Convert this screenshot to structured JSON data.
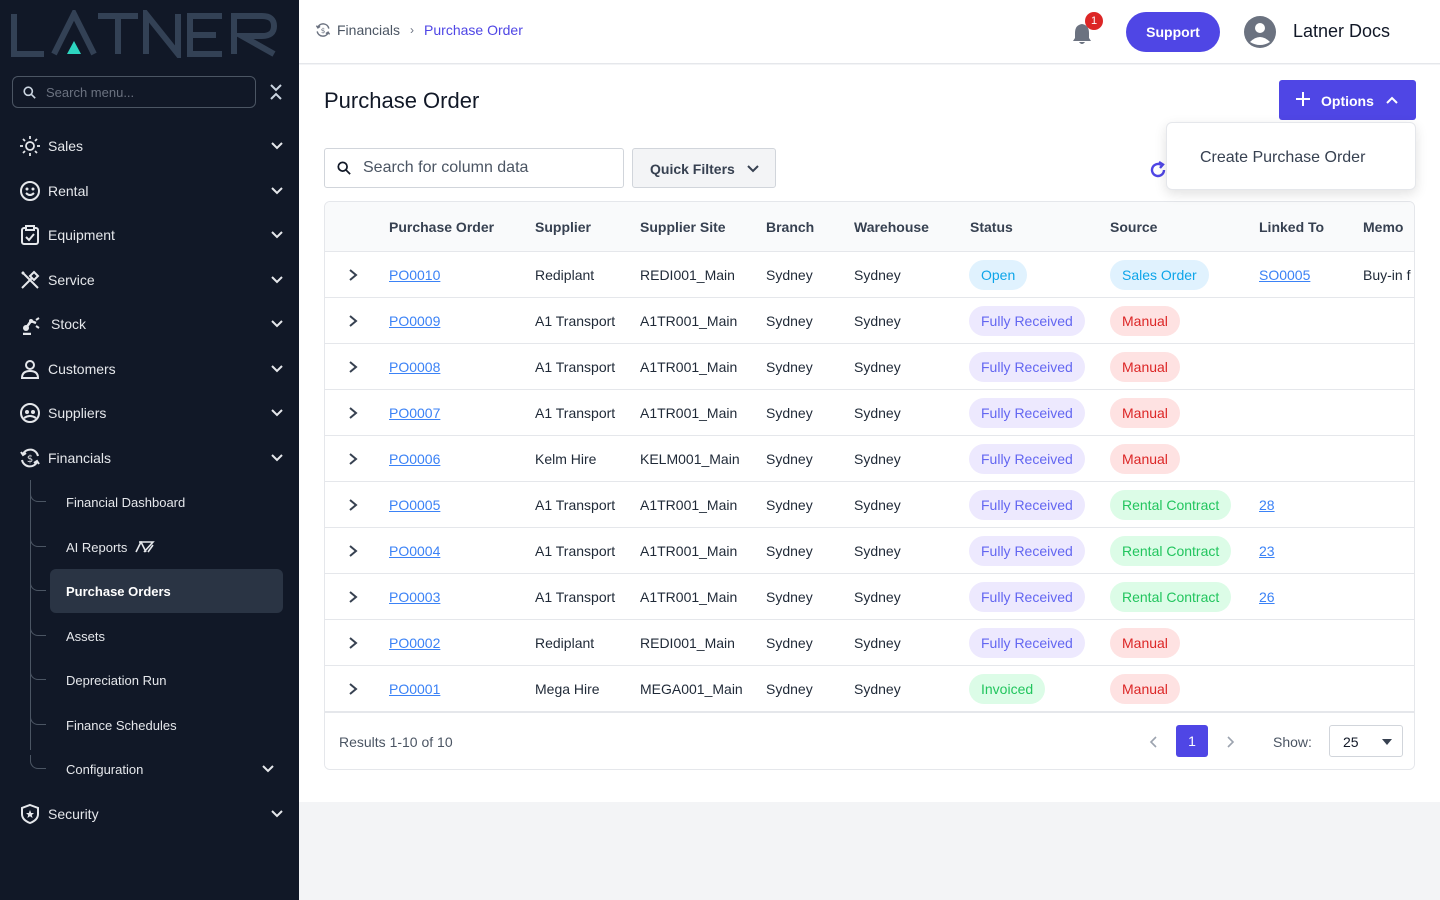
{
  "colors": {
    "sidebar_bg": "#111827",
    "accent": "#4f46e5",
    "link": "#3b82f6",
    "logo_teal": "#5eead4"
  },
  "sidebar": {
    "logo_text": "LATNER",
    "search_placeholder": "Search menu...",
    "items": [
      {
        "label": "Sales",
        "icon": "sun-icon"
      },
      {
        "label": "Rental",
        "icon": "face-icon"
      },
      {
        "label": "Equipment",
        "icon": "clipboard-icon"
      },
      {
        "label": "Service",
        "icon": "tools-icon"
      },
      {
        "label": "Stock",
        "icon": "robot-arm-icon"
      },
      {
        "label": "Customers",
        "icon": "user-icon"
      },
      {
        "label": "Suppliers",
        "icon": "people-icon"
      },
      {
        "label": "Financials",
        "icon": "dollar-cycle-icon"
      }
    ],
    "financials_sub": [
      {
        "label": "Financial Dashboard"
      },
      {
        "label": "AI Reports"
      },
      {
        "label": "Purchase Orders"
      },
      {
        "label": "Assets"
      },
      {
        "label": "Depreciation Run"
      },
      {
        "label": "Finance Schedules"
      },
      {
        "label": "Configuration"
      }
    ],
    "security_label": "Security"
  },
  "topbar": {
    "breadcrumb_parent": "Financials",
    "breadcrumb_current": "Purchase Order",
    "notification_count": "1",
    "support_label": "Support",
    "user_name": "Latner Docs"
  },
  "main": {
    "title": "Purchase Order",
    "options_label": "Options",
    "dropdown_item": "Create Purchase Order",
    "search_placeholder": "Search for column data",
    "quick_filters_label": "Quick Filters",
    "columns": [
      "Purchase Order",
      "Supplier",
      "Supplier Site",
      "Branch",
      "Warehouse",
      "Status",
      "Source",
      "Linked To",
      "Memo"
    ],
    "rows": [
      {
        "po": "PO0010",
        "supplier": "Rediplant",
        "site": "REDI001_Main",
        "branch": "Sydney",
        "warehouse": "Sydney",
        "status": "Open",
        "status_kind": "open",
        "source": "Sales Order",
        "source_kind": "sales",
        "linked": "SO0005",
        "memo": "Buy-in f"
      },
      {
        "po": "PO0009",
        "supplier": "A1 Transport",
        "site": "A1TR001_Main",
        "branch": "Sydney",
        "warehouse": "Sydney",
        "status": "Fully Received",
        "status_kind": "full",
        "source": "Manual",
        "source_kind": "manual",
        "linked": "",
        "memo": ""
      },
      {
        "po": "PO0008",
        "supplier": "A1 Transport",
        "site": "A1TR001_Main",
        "branch": "Sydney",
        "warehouse": "Sydney",
        "status": "Fully Received",
        "status_kind": "full",
        "source": "Manual",
        "source_kind": "manual",
        "linked": "",
        "memo": ""
      },
      {
        "po": "PO0007",
        "supplier": "A1 Transport",
        "site": "A1TR001_Main",
        "branch": "Sydney",
        "warehouse": "Sydney",
        "status": "Fully Received",
        "status_kind": "full",
        "source": "Manual",
        "source_kind": "manual",
        "linked": "",
        "memo": ""
      },
      {
        "po": "PO0006",
        "supplier": "Kelm Hire",
        "site": "KELM001_Main",
        "branch": "Sydney",
        "warehouse": "Sydney",
        "status": "Fully Received",
        "status_kind": "full",
        "source": "Manual",
        "source_kind": "manual",
        "linked": "",
        "memo": ""
      },
      {
        "po": "PO0005",
        "supplier": "A1 Transport",
        "site": "A1TR001_Main",
        "branch": "Sydney",
        "warehouse": "Sydney",
        "status": "Fully Received",
        "status_kind": "full",
        "source": "Rental Contract",
        "source_kind": "rental",
        "linked": "28",
        "memo": ""
      },
      {
        "po": "PO0004",
        "supplier": "A1 Transport",
        "site": "A1TR001_Main",
        "branch": "Sydney",
        "warehouse": "Sydney",
        "status": "Fully Received",
        "status_kind": "full",
        "source": "Rental Contract",
        "source_kind": "rental",
        "linked": "23",
        "memo": ""
      },
      {
        "po": "PO0003",
        "supplier": "A1 Transport",
        "site": "A1TR001_Main",
        "branch": "Sydney",
        "warehouse": "Sydney",
        "status": "Fully Received",
        "status_kind": "full",
        "source": "Rental Contract",
        "source_kind": "rental",
        "linked": "26",
        "memo": ""
      },
      {
        "po": "PO0002",
        "supplier": "Rediplant",
        "site": "REDI001_Main",
        "branch": "Sydney",
        "warehouse": "Sydney",
        "status": "Fully Received",
        "status_kind": "full",
        "source": "Manual",
        "source_kind": "manual",
        "linked": "",
        "memo": ""
      },
      {
        "po": "PO0001",
        "supplier": "Mega Hire",
        "site": "MEGA001_Main",
        "branch": "Sydney",
        "warehouse": "Sydney",
        "status": "Invoiced",
        "status_kind": "invoiced",
        "source": "Manual",
        "source_kind": "manual",
        "linked": "",
        "memo": ""
      }
    ],
    "results_text": "Results 1-10 of 10",
    "current_page": "1",
    "show_label": "Show:",
    "page_size": "25"
  }
}
